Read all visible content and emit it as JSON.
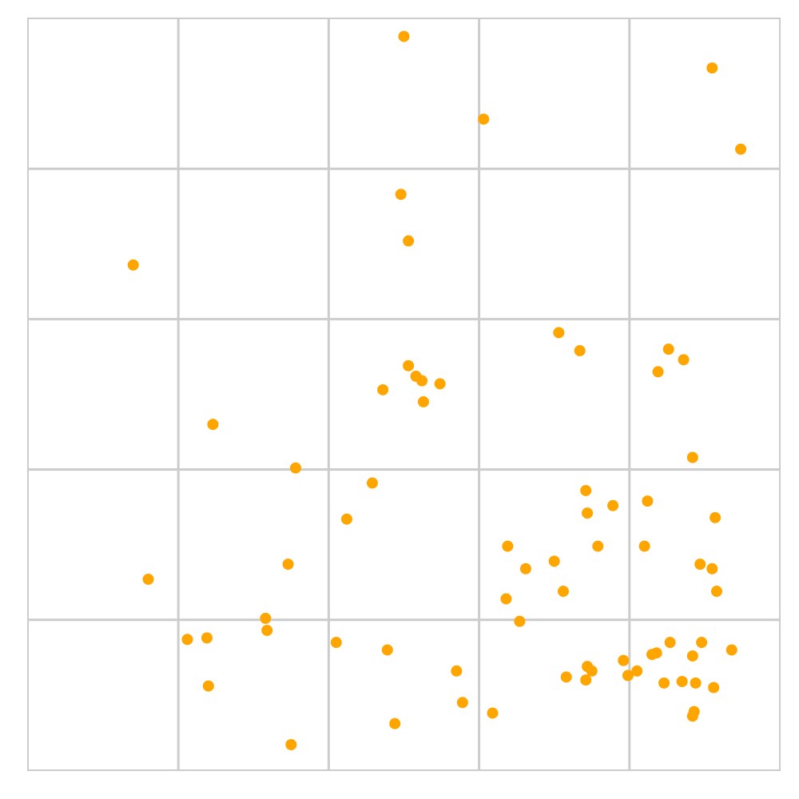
{
  "chart_data": {
    "type": "scatter",
    "title": "",
    "xlabel": "",
    "ylabel": "",
    "xlim": [
      0,
      5
    ],
    "ylim": [
      0,
      5
    ],
    "grid": true,
    "legend": "none",
    "colors": {
      "point": "#ffa500",
      "grid": "#cccccc",
      "frame": "#cccccc",
      "background": "#ffffff"
    },
    "series": [
      {
        "points": [
          [
            2.5,
            4.88
          ],
          [
            4.55,
            4.67
          ],
          [
            3.03,
            4.33
          ],
          [
            4.74,
            4.13
          ],
          [
            2.48,
            3.83
          ],
          [
            2.53,
            3.52
          ],
          [
            0.7,
            3.36
          ],
          [
            3.53,
            2.91
          ],
          [
            3.67,
            2.79
          ],
          [
            4.26,
            2.8
          ],
          [
            4.36,
            2.73
          ],
          [
            4.19,
            2.65
          ],
          [
            2.53,
            2.69
          ],
          [
            2.58,
            2.62
          ],
          [
            2.62,
            2.59
          ],
          [
            2.74,
            2.57
          ],
          [
            2.36,
            2.53
          ],
          [
            2.63,
            2.45
          ],
          [
            1.23,
            2.3
          ],
          [
            4.42,
            2.08
          ],
          [
            1.78,
            2.01
          ],
          [
            2.29,
            1.91
          ],
          [
            3.71,
            1.86
          ],
          [
            3.89,
            1.76
          ],
          [
            4.12,
            1.79
          ],
          [
            3.72,
            1.71
          ],
          [
            4.57,
            1.68
          ],
          [
            2.12,
            1.67
          ],
          [
            3.19,
            1.49
          ],
          [
            3.79,
            1.49
          ],
          [
            4.1,
            1.49
          ],
          [
            3.5,
            1.39
          ],
          [
            4.47,
            1.37
          ],
          [
            4.55,
            1.34
          ],
          [
            3.31,
            1.34
          ],
          [
            1.73,
            1.37
          ],
          [
            0.8,
            1.27
          ],
          [
            4.58,
            1.19
          ],
          [
            3.56,
            1.19
          ],
          [
            3.18,
            1.14
          ],
          [
            1.58,
            1.01
          ],
          [
            3.27,
            0.99
          ],
          [
            1.59,
            0.93
          ],
          [
            1.06,
            0.87
          ],
          [
            1.19,
            0.88
          ],
          [
            2.05,
            0.85
          ],
          [
            2.39,
            0.8
          ],
          [
            4.27,
            0.85
          ],
          [
            4.18,
            0.78
          ],
          [
            4.15,
            0.77
          ],
          [
            4.48,
            0.85
          ],
          [
            4.42,
            0.76
          ],
          [
            4.68,
            0.8
          ],
          [
            3.96,
            0.73
          ],
          [
            3.72,
            0.69
          ],
          [
            3.75,
            0.66
          ],
          [
            2.85,
            0.66
          ],
          [
            4.05,
            0.66
          ],
          [
            3.99,
            0.63
          ],
          [
            3.58,
            0.62
          ],
          [
            3.71,
            0.6
          ],
          [
            4.35,
            0.59
          ],
          [
            4.44,
            0.58
          ],
          [
            4.56,
            0.55
          ],
          [
            4.23,
            0.58
          ],
          [
            1.2,
            0.56
          ],
          [
            2.89,
            0.45
          ],
          [
            3.09,
            0.38
          ],
          [
            4.43,
            0.39
          ],
          [
            4.42,
            0.36
          ],
          [
            2.44,
            0.31
          ],
          [
            1.75,
            0.17
          ]
        ]
      }
    ]
  }
}
